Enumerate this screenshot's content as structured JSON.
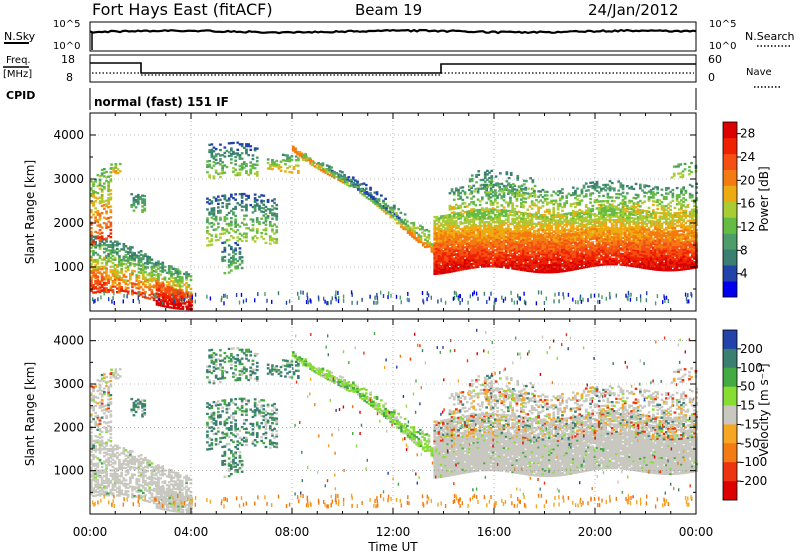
{
  "header": {
    "station": "Fort Hays East (fitACF)",
    "beam": "Beam 19",
    "date": "24/Jan/2012"
  },
  "strip": {
    "nsky_label": "N.Sky",
    "nsky_ticks": [
      "10^5",
      "10^0"
    ],
    "nsearch_label": "N.Search",
    "nsearch_ticks": [
      "10^5",
      "10^0"
    ],
    "freq_label": "Freq.",
    "freq_unit": "[MHz]",
    "freq_ticks": [
      "18",
      "8"
    ],
    "nave_label": "Nave",
    "nave_ticks": [
      "60",
      "0"
    ],
    "cpid_label": "CPID",
    "cpid_text": "normal (fast) 151 IF"
  },
  "colors": {
    "power": [
      "#0000ee",
      "#2244aa",
      "#3a7f70",
      "#4d9d6a",
      "#66bb44",
      "#aacc33",
      "#eeaa11",
      "#f47b11",
      "#f54f14",
      "#ee2200",
      "#dd0000"
    ],
    "velocity": [
      "#2244aa",
      "#3a7f70",
      "#44aa44",
      "#88dd33",
      "#c8c8c0",
      "#f6a623",
      "#f47b11",
      "#ee3311",
      "#dd0000"
    ]
  },
  "chart_data": [
    {
      "type": "heatmap",
      "name": "power",
      "ylabel": "Slant Range [km]",
      "yticks": [
        "1000",
        "2000",
        "3000",
        "4000"
      ],
      "ylim": [
        0,
        4500
      ],
      "xlim": [
        0,
        24
      ],
      "colorbar_label": "Power [dB]",
      "colorbar_ticks": [
        "4",
        "8",
        "12",
        "16",
        "20",
        "24",
        "28"
      ],
      "colorbar_range": [
        0,
        30
      ]
    },
    {
      "type": "heatmap",
      "name": "velocity",
      "ylabel": "Slant Range [km]",
      "yticks": [
        "1000",
        "2000",
        "3000",
        "4000"
      ],
      "ylim": [
        0,
        4500
      ],
      "xlim": [
        0,
        24
      ],
      "xlabel": "Time UT",
      "xticks": [
        "00:00",
        "04:00",
        "08:00",
        "12:00",
        "16:00",
        "20:00",
        "00:00"
      ],
      "colorbar_label": "Velocity [m s⁻¹]",
      "colorbar_ticks": [
        "200",
        "100",
        "50",
        "15",
        "-15",
        "-50",
        "-100",
        "-200"
      ]
    }
  ]
}
